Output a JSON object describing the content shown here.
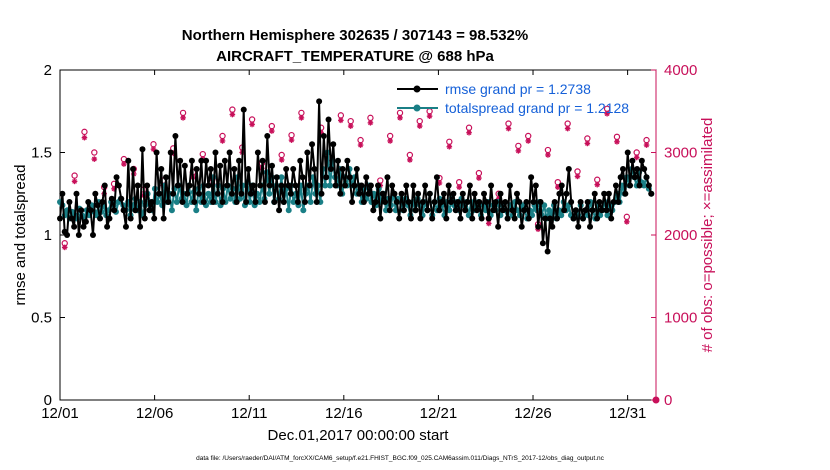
{
  "chart_data": {
    "type": "line",
    "title": "Northern Hemisphere 302635 / 307143 = 98.532%",
    "subtitle": "AIRCRAFT_TEMPERATURE @ 688 hPa",
    "xlabel": "Dec.01,2017 00:00:00 start",
    "ylabel": "rmse and totalspread",
    "y2label": "# of obs: o=possible; ×=assimilated",
    "footnote": "data file: /Users/raeder/DAI/ATM_forcXX/CAM6_setup/f.e21.FHIST_BGC.f09_025.CAM6assim.011/Diags_NTrS_2017-12/obs_diag_output.nc",
    "xlim": [
      0,
      31.5
    ],
    "ylim": [
      0,
      2
    ],
    "y2lim": [
      0,
      4000
    ],
    "x_ticks": [
      0,
      5,
      10,
      15,
      20,
      25,
      30
    ],
    "x_tick_labels": [
      "12/01",
      "12/06",
      "12/11",
      "12/16",
      "12/21",
      "12/26",
      "12/31"
    ],
    "y_tick_labels": [
      "0",
      "0.5",
      "1",
      "1.5",
      "2"
    ],
    "y2_tick_labels": [
      "0",
      "1000",
      "2000",
      "3000",
      "4000"
    ],
    "y_ticks": [
      0,
      0.5,
      1,
      1.5,
      2
    ],
    "y2_ticks": [
      0,
      1000,
      2000,
      3000,
      4000
    ],
    "legend_position": "top-right",
    "series": [
      {
        "name": "rmse grand pr = 1.2738",
        "color": "#000000",
        "values": [
          1.1,
          1.25,
          1.02,
          1.0,
          1.2,
          1.1,
          1.05,
          1.25,
          1.0,
          1.15,
          1.05,
          1.08,
          1.2,
          1.15,
          1.0,
          1.25,
          1.18,
          1.1,
          1.2,
          1.3,
          1.05,
          1.1,
          1.22,
          1.15,
          1.35,
          1.3,
          1.22,
          1.15,
          1.05,
          1.45,
          1.1,
          1.4,
          1.15,
          1.3,
          1.05,
          1.52,
          1.1,
          1.3,
          1.15,
          1.2,
          1.1,
          1.5,
          1.25,
          1.4,
          1.1,
          1.35,
          1.2,
          1.5,
          1.25,
          1.6,
          1.3,
          1.45,
          1.2,
          1.42,
          1.25,
          1.3,
          1.45,
          1.2,
          1.4,
          1.25,
          1.45,
          1.2,
          1.45,
          1.3,
          1.4,
          1.2,
          1.5,
          1.25,
          1.42,
          1.2,
          1.45,
          1.3,
          1.5,
          1.25,
          1.4,
          1.2,
          1.45,
          1.25,
          1.76,
          1.2,
          1.4,
          1.25,
          1.3,
          1.2,
          1.5,
          1.3,
          1.45,
          1.2,
          1.6,
          1.3,
          1.42,
          1.2,
          1.35,
          1.15,
          1.3,
          1.2,
          1.4,
          1.3,
          1.25,
          1.4,
          1.3,
          1.2,
          1.45,
          1.35,
          1.2,
          1.5,
          1.3,
          1.55,
          1.4,
          1.2,
          1.81,
          1.25,
          1.6,
          1.35,
          1.7,
          1.4,
          1.55,
          1.3,
          1.45,
          1.25,
          1.4,
          1.3,
          1.45,
          1.35,
          1.2,
          1.3,
          1.4,
          1.25,
          1.3,
          1.2,
          1.35,
          1.25,
          1.3,
          1.15,
          1.2,
          1.3,
          1.1,
          1.25,
          1.2,
          1.35,
          1.15,
          1.3,
          1.25,
          1.2,
          1.1,
          1.25,
          1.15,
          1.3,
          1.2,
          1.1,
          1.3,
          1.15,
          1.25,
          1.1,
          1.2,
          1.3,
          1.15,
          1.25,
          1.1,
          1.2,
          1.35,
          1.15,
          1.2,
          1.25,
          1.1,
          1.3,
          1.2,
          1.25,
          1.15,
          1.2,
          1.1,
          1.25,
          1.15,
          1.2,
          1.3,
          1.1,
          1.25,
          1.15,
          1.2,
          1.1,
          1.25,
          1.2,
          1.1,
          1.3,
          1.15,
          1.2,
          1.05,
          1.25,
          1.15,
          1.2,
          1.1,
          1.3,
          1.15,
          1.1,
          1.25,
          1.2,
          1.05,
          1.15,
          1.2,
          1.1,
          1.35,
          1.2,
          1.3,
          1.05,
          1.2,
          0.95,
          1.1,
          0.9,
          1.1,
          1.05,
          1.2,
          1.1,
          1.25,
          1.3,
          1.15,
          1.25,
          1.4,
          1.2,
          1.1,
          1.15,
          1.05,
          1.2,
          1.1,
          1.15,
          1.2,
          1.05,
          1.15,
          1.25,
          1.1,
          1.2,
          1.15,
          1.25,
          1.15,
          1.25,
          1.1,
          1.2,
          1.3,
          1.2,
          1.35,
          1.4,
          1.25,
          1.5,
          1.3,
          1.45,
          1.35,
          1.4,
          1.3,
          1.45,
          1.4,
          1.35,
          1.3,
          1.25
        ]
      },
      {
        "name": "totalspread grand pr = 1.2128",
        "color": "#1a7f86",
        "values": [
          1.2,
          1.18,
          1.12,
          1.15,
          1.1,
          1.14,
          1.12,
          1.1,
          1.16,
          1.12,
          1.1,
          1.15,
          1.12,
          1.18,
          1.14,
          1.12,
          1.2,
          1.14,
          1.18,
          1.12,
          1.15,
          1.2,
          1.18,
          1.14,
          1.2,
          1.22,
          1.18,
          1.15,
          1.2,
          1.12,
          1.18,
          1.22,
          1.15,
          1.2,
          1.12,
          1.18,
          1.25,
          1.2,
          1.15,
          1.28,
          1.2,
          1.25,
          1.18,
          1.3,
          1.2,
          1.25,
          1.15,
          1.28,
          1.2,
          1.3,
          1.22,
          1.25,
          1.18,
          1.3,
          1.2,
          1.26,
          1.15,
          1.28,
          1.2,
          1.3,
          1.18,
          1.25,
          1.2,
          1.35,
          1.2,
          1.3,
          1.18,
          1.28,
          1.2,
          1.3,
          1.22,
          1.28,
          1.2,
          1.35,
          1.22,
          1.3,
          1.18,
          1.32,
          1.2,
          1.3,
          1.18,
          1.25,
          1.2,
          1.3,
          1.22,
          1.38,
          1.25,
          1.35,
          1.2,
          1.3,
          1.22,
          1.35,
          1.2,
          1.28,
          1.15,
          1.3,
          1.2,
          1.25,
          1.18,
          1.3,
          1.15,
          1.25,
          1.3,
          1.2,
          1.35,
          1.25,
          1.3,
          1.2,
          1.4,
          1.3,
          1.5,
          1.3,
          1.45,
          1.35,
          1.3,
          1.4,
          1.25,
          1.35,
          1.3,
          1.4,
          1.3,
          1.35,
          1.25,
          1.3,
          1.2,
          1.28,
          1.22,
          1.3,
          1.2,
          1.25,
          1.18,
          1.28,
          1.2,
          1.25,
          1.15,
          1.22,
          1.18,
          1.25,
          1.15,
          1.22,
          1.2,
          1.15,
          1.22,
          1.18,
          1.12,
          1.2,
          1.15,
          1.22,
          1.18,
          1.12,
          1.2,
          1.15,
          1.25,
          1.12,
          1.2,
          1.15,
          1.22,
          1.18,
          1.12,
          1.2,
          1.15,
          1.22,
          1.18,
          1.2,
          1.15,
          1.22,
          1.18,
          1.2,
          1.12,
          1.2,
          1.15,
          1.18,
          1.2,
          1.12,
          1.18,
          1.15,
          1.2,
          1.12,
          1.18,
          1.15,
          1.2,
          1.12,
          1.18,
          1.15,
          1.1,
          1.18,
          1.12,
          1.2,
          1.15,
          1.12,
          1.18,
          1.15,
          1.1,
          1.15,
          1.12,
          1.18,
          1.15,
          1.2,
          1.12,
          1.18,
          1.1,
          1.15,
          1.12,
          1.18,
          1.1,
          1.15,
          1.12,
          1.2,
          1.15,
          1.18,
          1.12,
          1.1,
          1.15,
          1.12,
          1.18,
          1.1,
          1.15,
          1.12,
          1.2,
          1.15,
          1.1,
          1.18,
          1.12,
          1.15,
          1.2,
          1.12,
          1.18,
          1.15,
          1.2,
          1.25,
          1.2,
          1.3,
          1.25,
          1.35,
          1.3,
          1.4,
          1.35,
          1.3,
          1.38,
          1.32,
          1.3,
          1.35,
          1.28,
          1.25
        ]
      }
    ],
    "obs_possible": [
      1900,
      2720,
      3250,
      3000,
      2580,
      2620,
      2920,
      2800,
      2550,
      3100,
      2660,
      3050,
      3480,
      2760,
      2980,
      2680,
      3200,
      3520,
      3060,
      3400,
      2870,
      3320,
      2970,
      3210,
      3480,
      2660,
      3300,
      2880,
      3450,
      3380,
      3150,
      3420,
      2660,
      3200,
      3480,
      2970,
      3380,
      3500,
      2690,
      3130,
      2640,
      3300,
      2750,
      2200,
      2500,
      3350,
      3080,
      3200,
      2130,
      3030,
      2640,
      3350,
      2770,
      3170,
      2670,
      3530,
      3190,
      2220,
      3000,
      3150
    ],
    "obs_assimilated": [
      1850,
      2650,
      3180,
      2920,
      2500,
      2560,
      2860,
      2740,
      2480,
      3040,
      2600,
      2990,
      3420,
      2700,
      2920,
      2620,
      3140,
      3460,
      3000,
      3340,
      2810,
      3260,
      2910,
      3150,
      3420,
      2600,
      3240,
      2820,
      3390,
      3320,
      3090,
      3360,
      2600,
      3140,
      3420,
      2910,
      3320,
      3440,
      2630,
      3070,
      2580,
      3240,
      2690,
      2140,
      2440,
      3290,
      3020,
      3140,
      2070,
      2970,
      2580,
      3290,
      2710,
      3110,
      2610,
      3470,
      3130,
      2160,
      2940,
      3090
    ]
  }
}
